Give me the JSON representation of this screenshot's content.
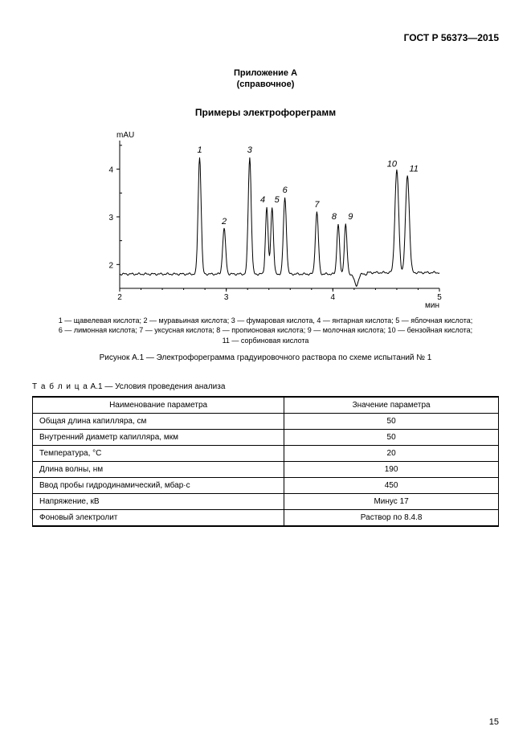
{
  "header": {
    "doc_code": "ГОСТ Р 56373—2015"
  },
  "appendix": {
    "line1": "Приложение А",
    "line2": "(справочное)"
  },
  "section_title": "Примеры электрофореграмм",
  "chart": {
    "type": "line",
    "y_label": "mAU",
    "x_label": "мин",
    "xlim": [
      2,
      5
    ],
    "ylim": [
      1.5,
      4.6
    ],
    "yticks": [
      2,
      3,
      4
    ],
    "xticks": [
      2,
      3,
      4,
      5
    ],
    "baseline_y": 1.8,
    "colors": {
      "axis": "#000000",
      "line": "#000000",
      "grid": "#000000",
      "bg": "#ffffff",
      "text": "#000000"
    },
    "label_fontsize": 11,
    "axis_fontsize": 10,
    "peak_label_style": "italic",
    "line_width": 1,
    "peaks": [
      {
        "id": "1",
        "x": 2.75,
        "height": 4.25,
        "width": 0.04
      },
      {
        "id": "2",
        "x": 2.98,
        "height": 2.75,
        "width": 0.04
      },
      {
        "id": "3",
        "x": 3.22,
        "height": 4.25,
        "width": 0.04
      },
      {
        "id": "4",
        "x": 3.38,
        "height": 3.2,
        "width": 0.035
      },
      {
        "id": "5",
        "x": 3.43,
        "height": 3.2,
        "width": 0.035
      },
      {
        "id": "6",
        "x": 3.55,
        "height": 3.4,
        "width": 0.04
      },
      {
        "id": "7",
        "x": 3.85,
        "height": 3.1,
        "width": 0.04
      },
      {
        "id": "8",
        "x": 4.05,
        "height": 2.85,
        "width": 0.035
      },
      {
        "id": "9",
        "x": 4.12,
        "height": 2.85,
        "width": 0.035
      },
      {
        "id": "10",
        "x": 4.6,
        "height": 3.95,
        "width": 0.05
      },
      {
        "id": "11",
        "x": 4.7,
        "height": 3.85,
        "width": 0.05
      }
    ],
    "dip": {
      "x": 4.22,
      "depth": 1.55,
      "width": 0.05
    }
  },
  "legend": {
    "line1": "1 — щавелевая кислота; 2 — муравьиная кислота; 3 — фумаровая кислота, 4 — янтарная кислота; 5 — яблочная кислота;",
    "line2": "6 — лимонная кислота; 7 — уксусная кислота; 8 — пропионовая кислота; 9 — молочная кислота; 10 — бензойная кислота;",
    "line3": "11 — сорбиновая кислота"
  },
  "figure_caption": "Рисунок А.1 — Электрофореграмма градуировочного раствора по схеме испытаний № 1",
  "table": {
    "title_spaced": "Т а б л и ц а",
    "title_rest": "  А.1 — Условия проведения анализа",
    "header_param": "Наименование параметра",
    "header_value": "Значение параметра",
    "col_widths": [
      "54%",
      "46%"
    ],
    "rows": [
      {
        "param": "Общая длина капилляра, см",
        "value": "50"
      },
      {
        "param": "Внутренний диаметр капилляра, мкм",
        "value": "50"
      },
      {
        "param": "Температура, °С",
        "value": "20"
      },
      {
        "param": "Длина волны, нм",
        "value": "190"
      },
      {
        "param": "Ввод пробы гидродинамический, мбар·с",
        "value": "450"
      },
      {
        "param": "Напряжение, кВ",
        "value": "Минус 17"
      },
      {
        "param": "Фоновый электролит",
        "value": "Раствор по 8.4.8"
      }
    ]
  },
  "page_number": "15"
}
